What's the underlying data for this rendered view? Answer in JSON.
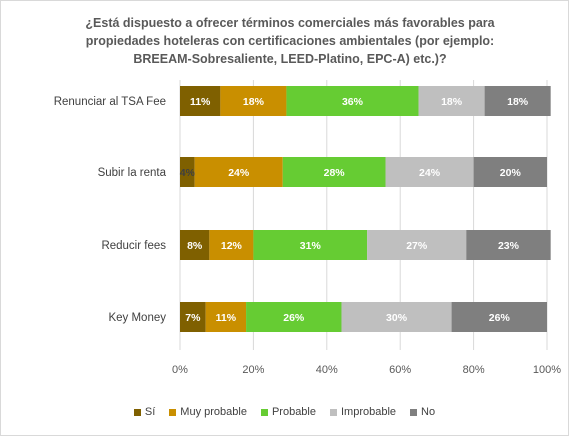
{
  "chart_data": {
    "type": "bar",
    "orientation": "horizontal",
    "stacked": true,
    "percent": true,
    "title": "¿Está dispuesto a ofrecer términos comerciales más favorables para propiedades hoteleras con certificaciones ambientales (por ejemplo: BREEAM-Sobresaliente, LEED-Platino, EPC-A) etc.)?",
    "xlim": [
      0,
      100
    ],
    "x_ticks": [
      "0%",
      "20%",
      "40%",
      "60%",
      "80%",
      "100%"
    ],
    "categories": [
      "Renunciar al TSA Fee",
      "Subir la renta",
      "Reducir fees",
      "Key Money"
    ],
    "series": [
      {
        "name": "Sí",
        "color": "#7f6000",
        "values": [
          11,
          4,
          8,
          7
        ]
      },
      {
        "name": "Muy probable",
        "color": "#c98f00",
        "values": [
          18,
          24,
          12,
          11
        ]
      },
      {
        "name": "Probable",
        "color": "#66cc33",
        "values": [
          36,
          28,
          31,
          26
        ]
      },
      {
        "name": "Improbable",
        "color": "#bfbfbf",
        "values": [
          18,
          24,
          27,
          30
        ]
      },
      {
        "name": "No",
        "color": "#7f7f7f",
        "values": [
          18,
          20,
          23,
          26
        ]
      }
    ],
    "legend_position": "bottom",
    "grid": "vertical"
  }
}
